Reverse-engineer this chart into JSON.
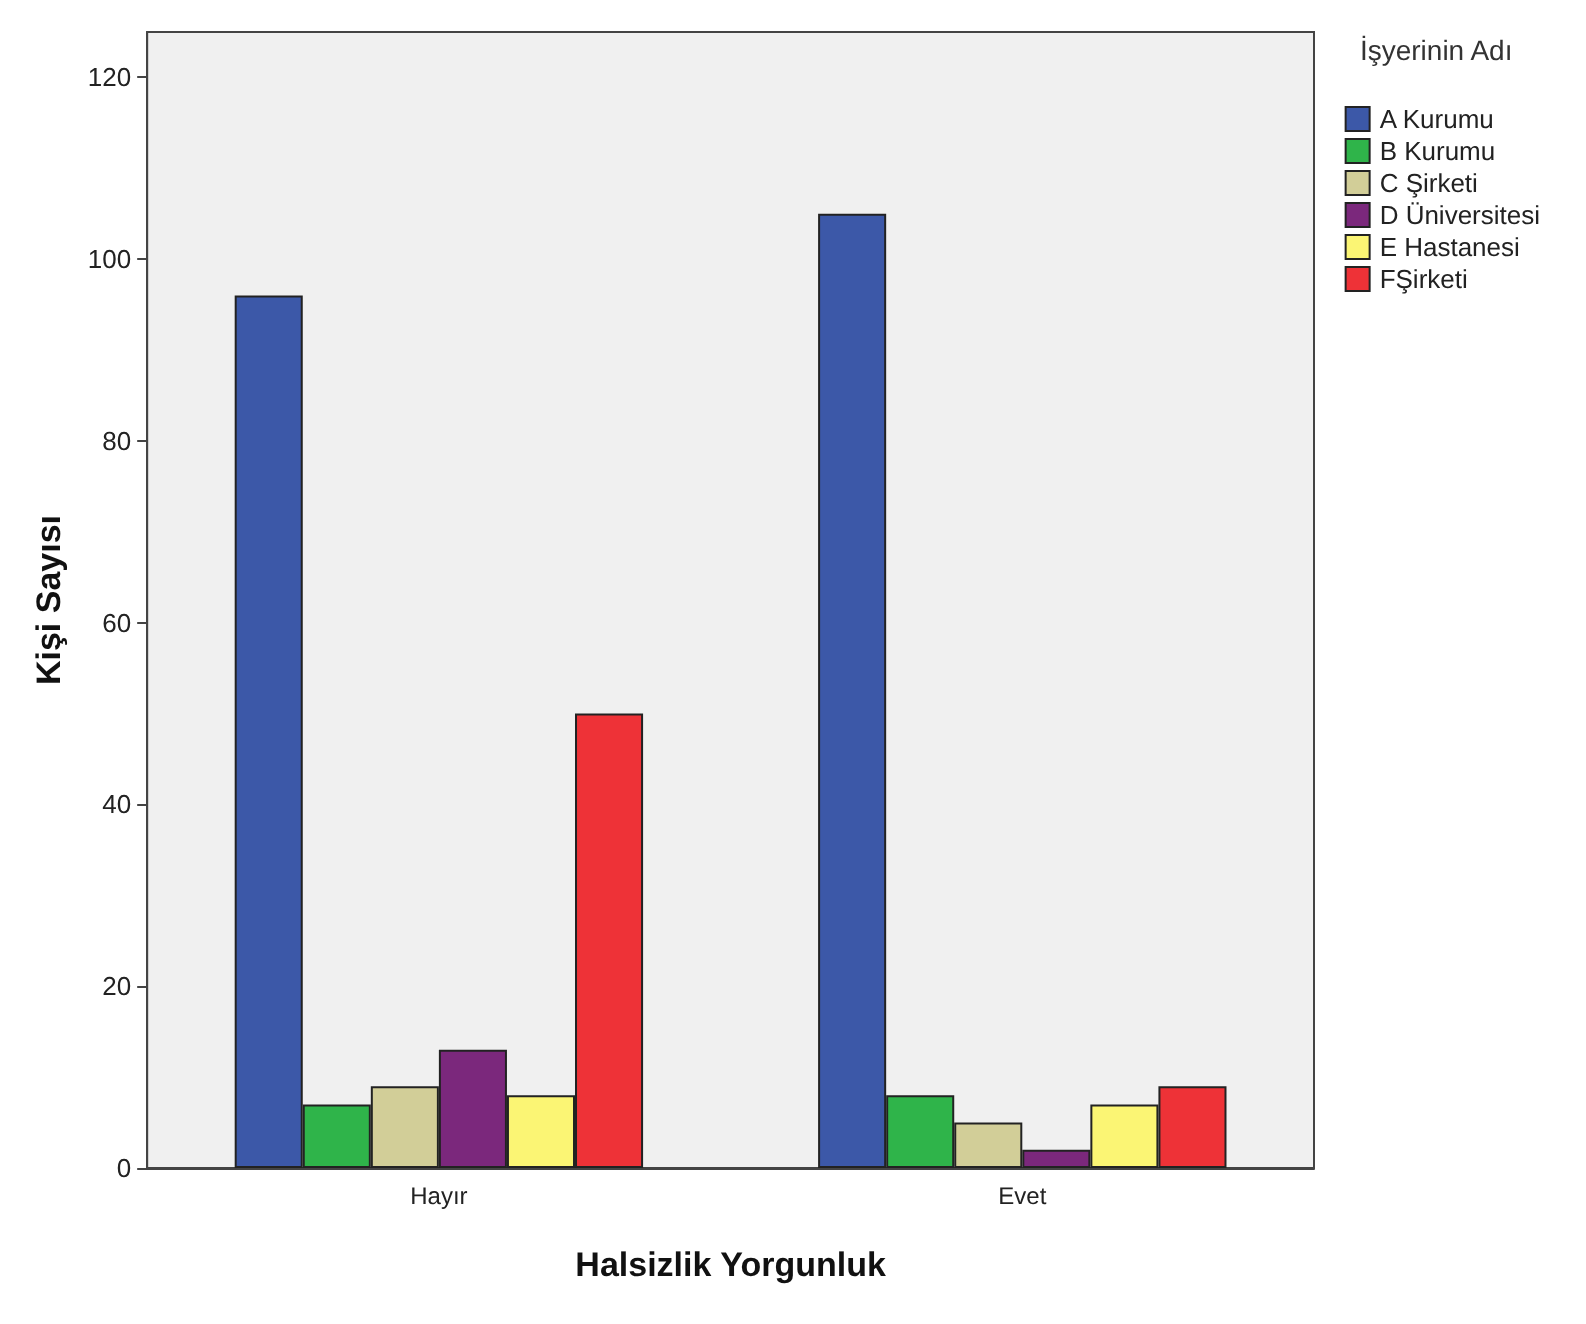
{
  "chart_data": {
    "type": "bar",
    "xlabel": "Halsizlik Yorgunluk",
    "ylabel": "Kişi Sayısı",
    "legend_title": "İşyerinin Adı",
    "categories": [
      "Hayır",
      "Evet"
    ],
    "series": [
      {
        "name": "A Kurumu",
        "color": "#3c58a8",
        "values": [
          96,
          105
        ]
      },
      {
        "name": "B Kurumu",
        "color": "#2fb44a",
        "values": [
          7,
          8
        ]
      },
      {
        "name": "C Şirketi",
        "color": "#d2ce98",
        "values": [
          9,
          5
        ]
      },
      {
        "name": "D Üniversitesi",
        "color": "#7b287c",
        "values": [
          13,
          2
        ]
      },
      {
        "name": "E Hastanesi",
        "color": "#fbf574",
        "values": [
          8,
          7
        ]
      },
      {
        "name": "FŞirketi",
        "color": "#ee3237",
        "values": [
          50,
          9
        ]
      }
    ],
    "ylim": [
      0,
      125
    ],
    "yticks": [
      0,
      20,
      40,
      60,
      80,
      100,
      120
    ],
    "grid": false,
    "legend": "top right"
  }
}
